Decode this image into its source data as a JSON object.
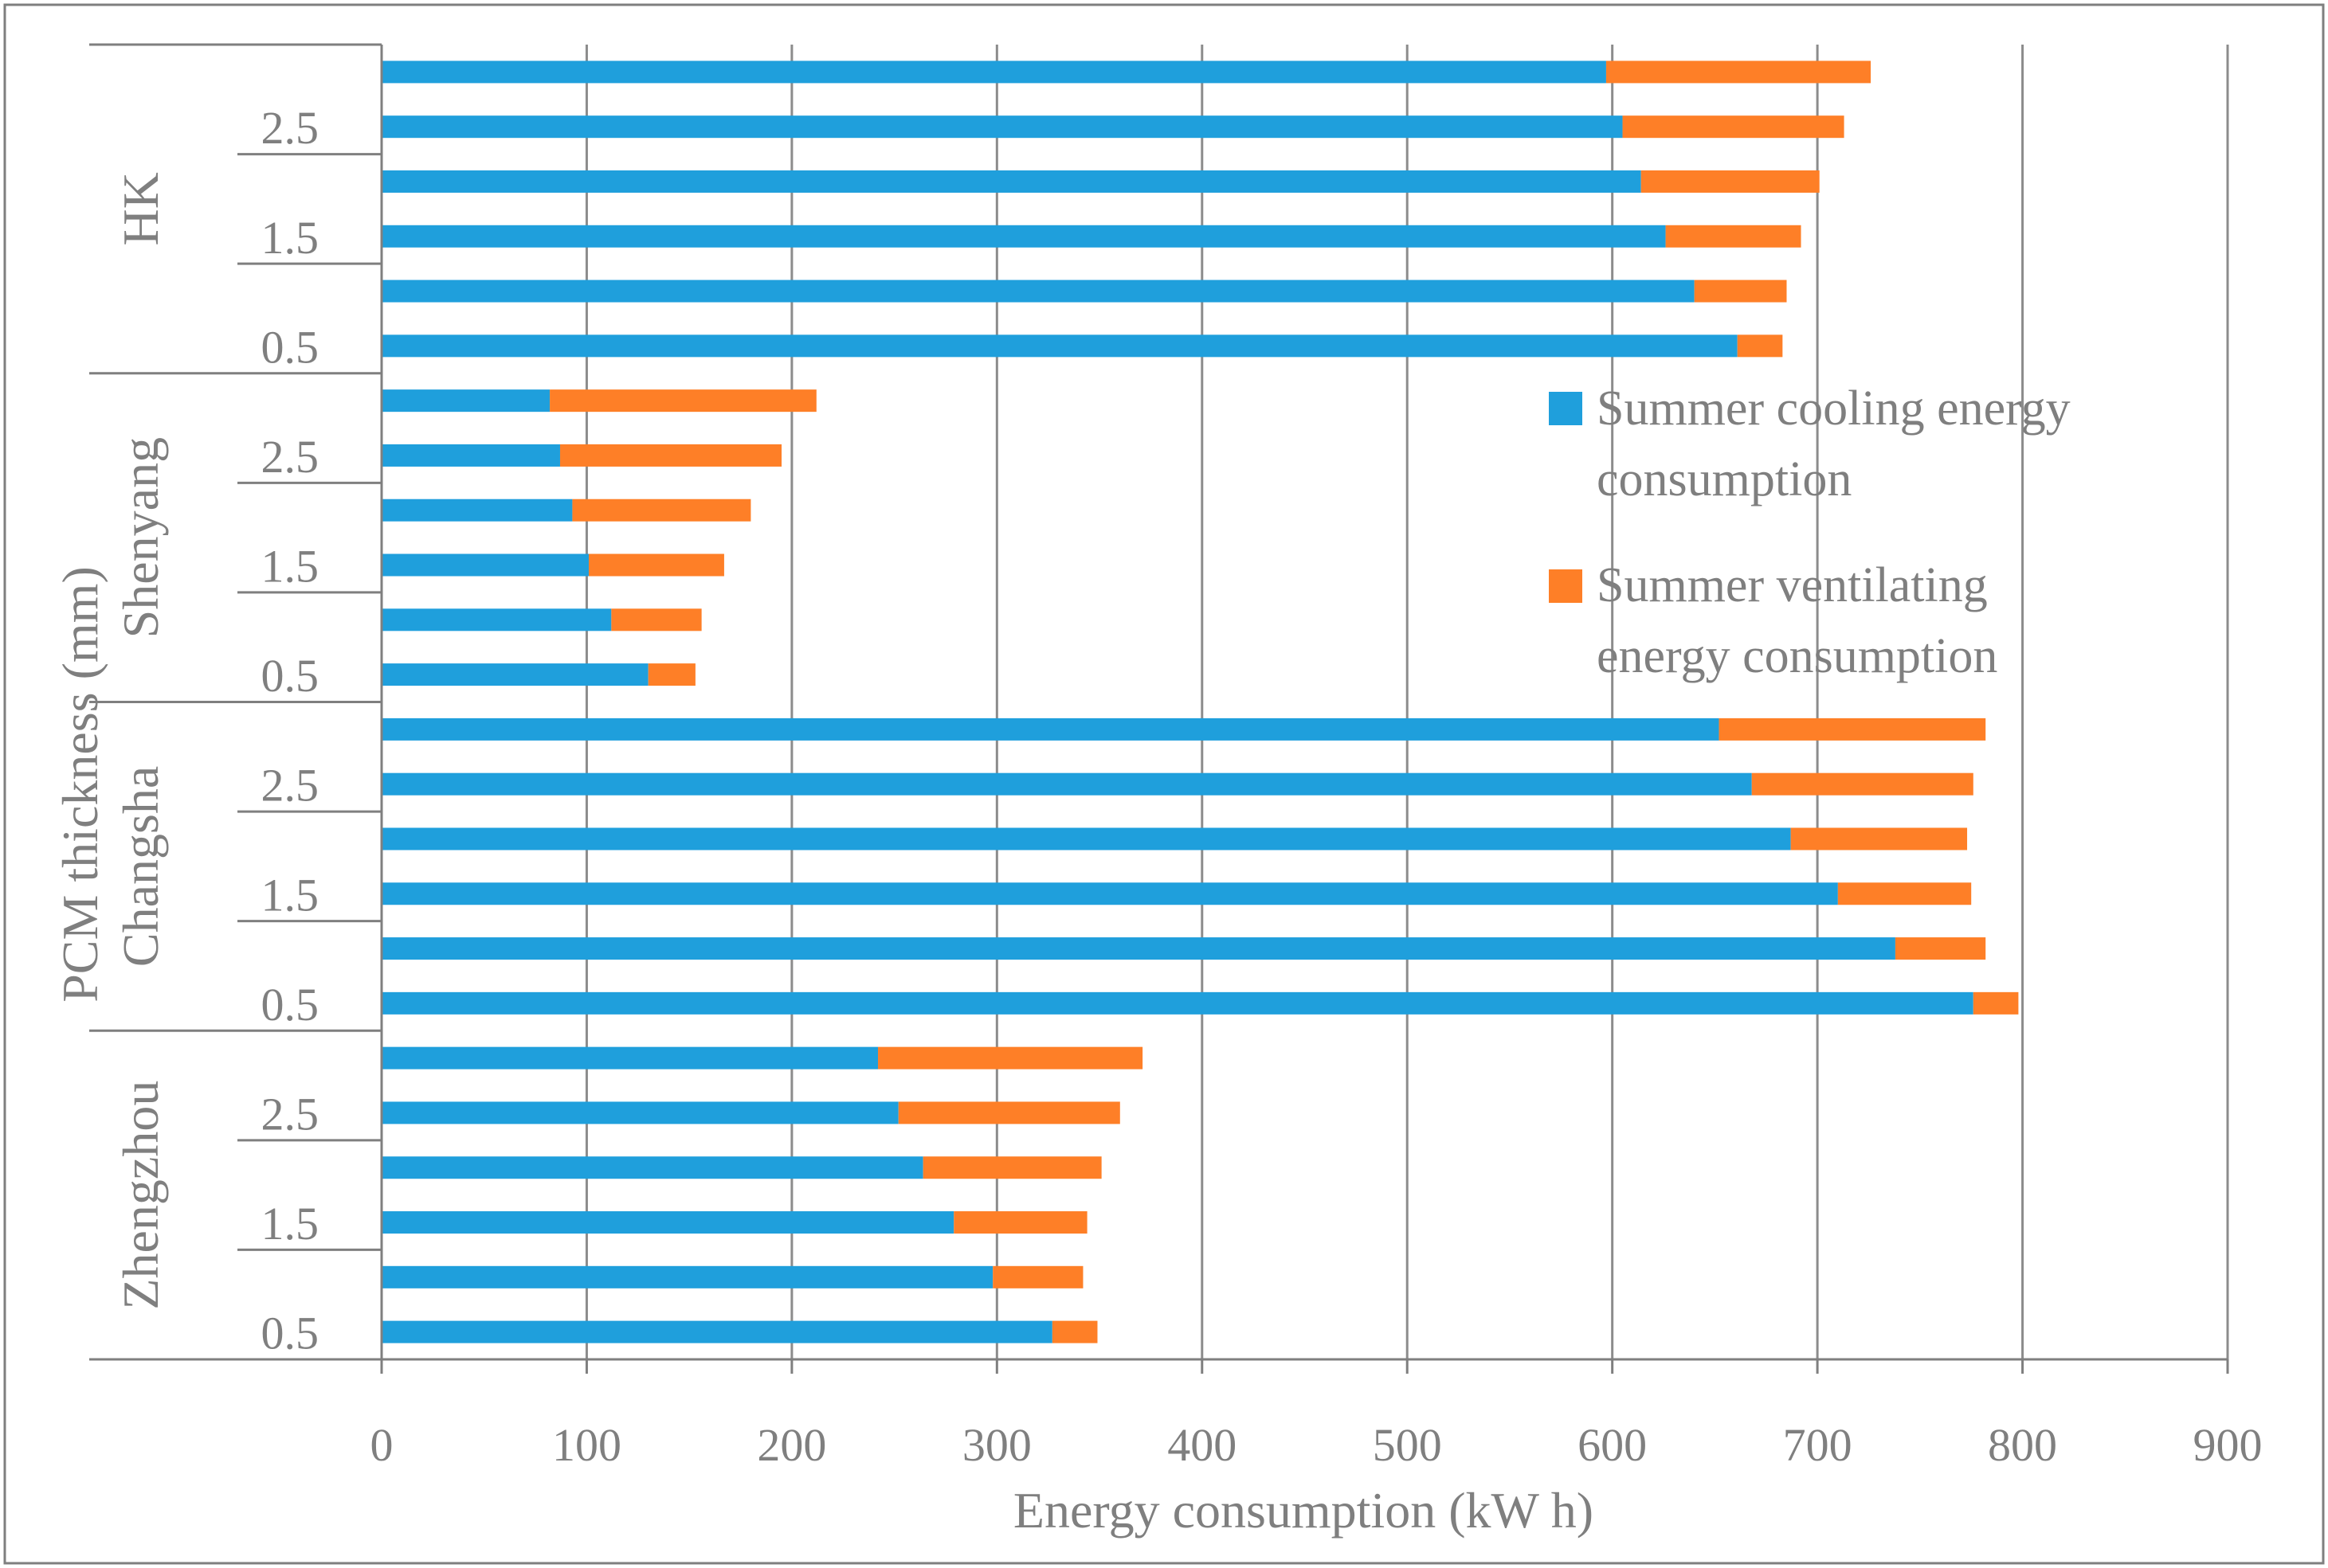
{
  "chart_data": {
    "type": "bar",
    "orientation": "horizontal",
    "stacked": true,
    "xlabel": "Energy consumption (kW h)",
    "ylabel": "PCM thickness (mm)",
    "xlim": [
      0,
      900
    ],
    "xticks": [
      "0",
      "100",
      "200",
      "300",
      "400",
      "500",
      "600",
      "700",
      "800",
      "900"
    ],
    "grid": true,
    "legend_position": "right-middle",
    "colors": {
      "cooling": "#1f9fdc",
      "ventilating": "#fe7f27",
      "axis": "#7f7f7f",
      "grid": "#8c8c8c"
    },
    "series": [
      {
        "name": "Summer cooling energy consumption",
        "legend_lines": [
          "Summer cooling energy",
          "consumption"
        ],
        "color": "#1f9fdc"
      },
      {
        "name": "Summer ventilating energy consumption",
        "legend_lines": [
          "Summer ventilating",
          "energy consumption"
        ],
        "color": "#fe7f27"
      }
    ],
    "groups": [
      {
        "city": "HK",
        "thickness_labels": [
          "2.5",
          "1.5",
          "0.5"
        ],
        "cooling": [
          597,
          605,
          614,
          626,
          640,
          661
        ],
        "ventilating": [
          129,
          108,
          87,
          66,
          45,
          22
        ]
      },
      {
        "city": "Shenyang",
        "thickness_labels": [
          "2.5",
          "1.5",
          "0.5"
        ],
        "cooling": [
          82,
          87,
          93,
          101,
          112,
          130
        ],
        "ventilating": [
          130,
          108,
          87,
          66,
          44,
          23
        ]
      },
      {
        "city": "Changsha",
        "thickness_labels": [
          "2.5",
          "1.5",
          "0.5"
        ],
        "cooling": [
          652,
          668,
          687,
          710,
          738,
          776
        ],
        "ventilating": [
          130,
          108,
          86,
          65,
          44,
          22
        ]
      },
      {
        "city": "Zhengzhou",
        "thickness_labels": [
          "2.5",
          "1.5",
          "0.5"
        ],
        "cooling": [
          242,
          252,
          264,
          279,
          298,
          327
        ],
        "ventilating": [
          129,
          108,
          87,
          65,
          44,
          22
        ]
      }
    ]
  }
}
